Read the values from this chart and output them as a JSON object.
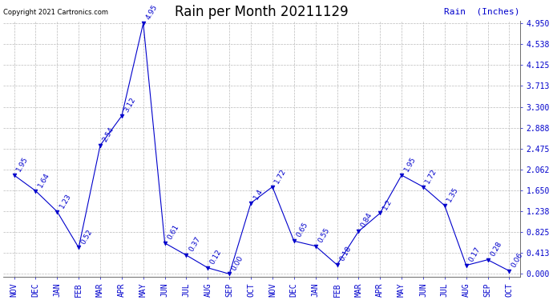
{
  "title": "Rain per Month 20211129",
  "copyright": "Copyright 2021 Cartronics.com",
  "legend_label": "Rain  (Inches)",
  "months": [
    "NOV",
    "DEC",
    "JAN",
    "FEB",
    "MAR",
    "APR",
    "MAY",
    "JUN",
    "JUL",
    "AUG",
    "SEP",
    "OCT",
    "NOV",
    "DEC",
    "JAN",
    "FEB",
    "MAR",
    "APR",
    "MAY",
    "JUN",
    "JUL",
    "AUG",
    "SEP",
    "OCT"
  ],
  "values": [
    1.95,
    1.64,
    1.23,
    0.52,
    2.54,
    3.12,
    4.95,
    0.61,
    0.37,
    0.12,
    0.0,
    1.4,
    1.72,
    0.65,
    0.55,
    0.18,
    0.84,
    1.2,
    1.95,
    1.72,
    1.35,
    0.17,
    0.28,
    0.06
  ],
  "line_color": "#0000cc",
  "marker_color": "#0000cc",
  "background_color": "#ffffff",
  "grid_color": "#bbbbbb",
  "title_fontsize": 12,
  "annotation_fontsize": 6.5,
  "tick_fontsize": 7,
  "copyright_fontsize": 6,
  "legend_fontsize": 8,
  "ymax": 4.95,
  "yticks": [
    0.0,
    0.413,
    0.825,
    1.238,
    1.65,
    2.062,
    2.475,
    2.888,
    3.3,
    3.713,
    4.125,
    4.538,
    4.95
  ]
}
